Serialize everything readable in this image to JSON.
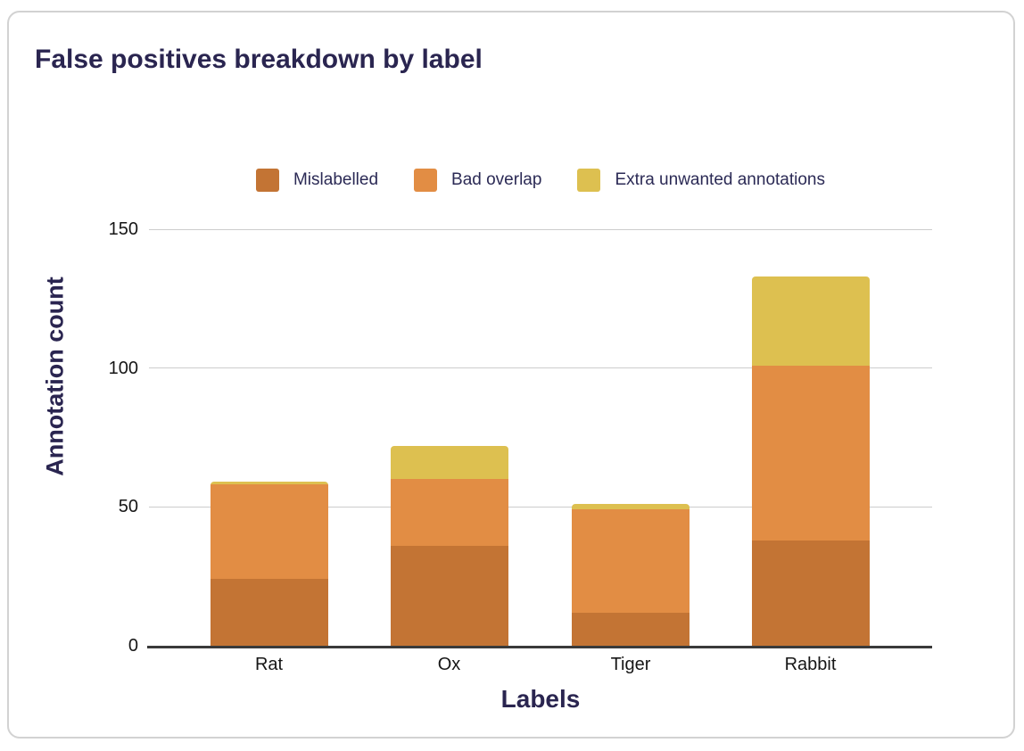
{
  "card": {
    "title": "False positives breakdown by label"
  },
  "chart_data": {
    "type": "bar",
    "stacked": true,
    "title": "False positives breakdown by label",
    "xlabel": "Labels",
    "ylabel": "Annotation count",
    "categories": [
      "Rat",
      "Ox",
      "Tiger",
      "Rabbit"
    ],
    "series": [
      {
        "name": "Mislabelled",
        "color": "#c37434",
        "values": [
          24,
          36,
          12,
          38
        ]
      },
      {
        "name": "Bad overlap",
        "color": "#e28d44",
        "values": [
          34,
          24,
          37,
          63
        ]
      },
      {
        "name": "Extra unwanted annotations",
        "color": "#ddc050",
        "values": [
          1,
          12,
          2,
          32
        ]
      }
    ],
    "totals": [
      59,
      72,
      51,
      133
    ],
    "ylim": [
      0,
      150
    ],
    "yticks": [
      0,
      50,
      100,
      150
    ],
    "grid": "horizontal",
    "legend_position": "top"
  },
  "colors": {
    "title_text": "#2a2550",
    "legend_text": "#2b2a55",
    "tick_text": "#161616",
    "gridline": "#cccccc",
    "axis_line": "#3a3a3a",
    "card_border": "#d2d2d2",
    "background": "#ffffff"
  }
}
